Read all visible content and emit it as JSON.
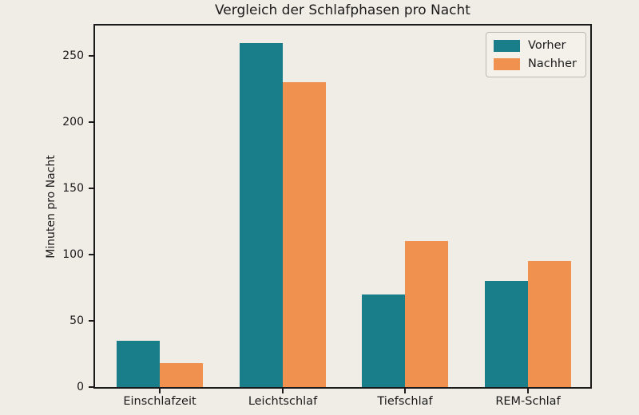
{
  "chart_data": {
    "type": "bar",
    "title": "Vergleich der Schlafphasen pro Nacht",
    "xlabel": "",
    "ylabel": "Minuten pro Nacht",
    "categories": [
      "Einschlafzeit",
      "Leichtschlaf",
      "Tiefschlaf",
      "REM-Schlaf"
    ],
    "series": [
      {
        "name": "Vorher",
        "values": [
          35,
          260,
          70,
          80
        ],
        "color": "#1a7e8a"
      },
      {
        "name": "Nachher",
        "values": [
          18,
          230,
          110,
          95
        ],
        "color": "#f0914f"
      }
    ],
    "yticks": [
      0,
      50,
      100,
      150,
      200,
      250
    ],
    "ylim": [
      0,
      273
    ],
    "grid": false,
    "legend_position": "upper right"
  },
  "colors": {
    "background": "#f0ede6",
    "spine": "#1b1b1b",
    "text": "#1b1b1b",
    "teal": "#1a7e8a",
    "orange": "#f0914f",
    "legend_background": "#f4f1ea",
    "legend_border": "#bcb8af"
  }
}
